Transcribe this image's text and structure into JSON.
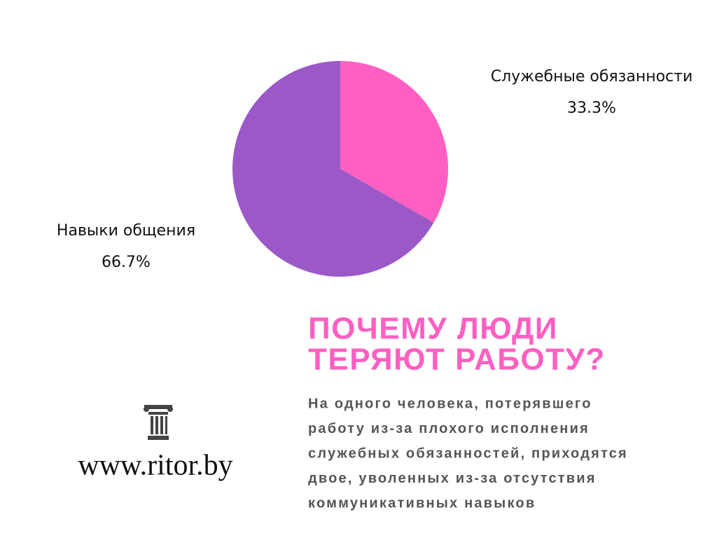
{
  "chart_data": {
    "type": "pie",
    "categories": [
      "Служебные обязанности",
      "Навыки общения"
    ],
    "values": [
      33.3,
      66.7
    ],
    "value_labels": [
      "33.3%",
      "66.7%"
    ],
    "colors": [
      "#ff5fc2",
      "#9b59c8"
    ]
  },
  "heading": {
    "lines": [
      "ПОЧЕМУ ЛЮДИ",
      "ТЕРЯЮТ РАБОТУ?"
    ]
  },
  "body": {
    "lines": [
      "На одного человека, потерявшего",
      "работу из-за плохого исполнения",
      "служебных обязанностей, приходятся",
      "двое, уволенных из-за отсутствия",
      "коммуникативных навыков"
    ]
  },
  "site": "www.ritor.by"
}
